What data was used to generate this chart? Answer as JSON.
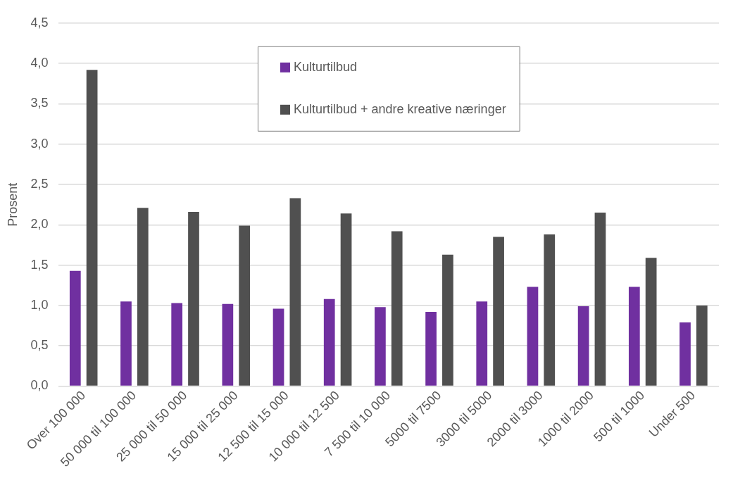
{
  "chart_data": {
    "type": "bar",
    "ylabel": "Prosent",
    "categories": [
      "Over 100 000",
      "50 000 til 100 000",
      "25 000 til 50 000",
      "15 000 til 25 000",
      "12 500 til 15 000",
      "10 000 til 12 500",
      "7 500 til 10 000",
      "5000 til 7500",
      "3000 til 5000",
      "2000 til 3000",
      "1000 til 2000",
      "500 til 1000",
      "Under 500"
    ],
    "series": [
      {
        "name": "Kulturtilbud",
        "color": "#7030a0",
        "values": [
          1.43,
          1.05,
          1.03,
          1.02,
          0.96,
          1.08,
          0.98,
          0.92,
          1.05,
          1.23,
          0.99,
          1.23,
          0.79
        ]
      },
      {
        "name": "Kulturtilbud + andre kreative næringer",
        "color": "#505050",
        "values": [
          3.92,
          2.21,
          2.16,
          1.99,
          2.33,
          2.14,
          1.92,
          1.63,
          1.85,
          1.88,
          2.15,
          1.59,
          1.0
        ]
      }
    ],
    "ylim": [
      0,
      4.5
    ],
    "yticks": [
      {
        "value": 0,
        "label": "0,0"
      },
      {
        "value": 0.5,
        "label": "0,5"
      },
      {
        "value": 1,
        "label": "1,0"
      },
      {
        "value": 1.5,
        "label": "1,5"
      },
      {
        "value": 2,
        "label": "2,0"
      },
      {
        "value": 2.5,
        "label": "2,5"
      },
      {
        "value": 3,
        "label": "3,0"
      },
      {
        "value": 3.5,
        "label": "3,5"
      },
      {
        "value": 4,
        "label": "4,0"
      },
      {
        "value": 4.5,
        "label": "4,5"
      }
    ],
    "grid": "y",
    "legend": "top"
  }
}
